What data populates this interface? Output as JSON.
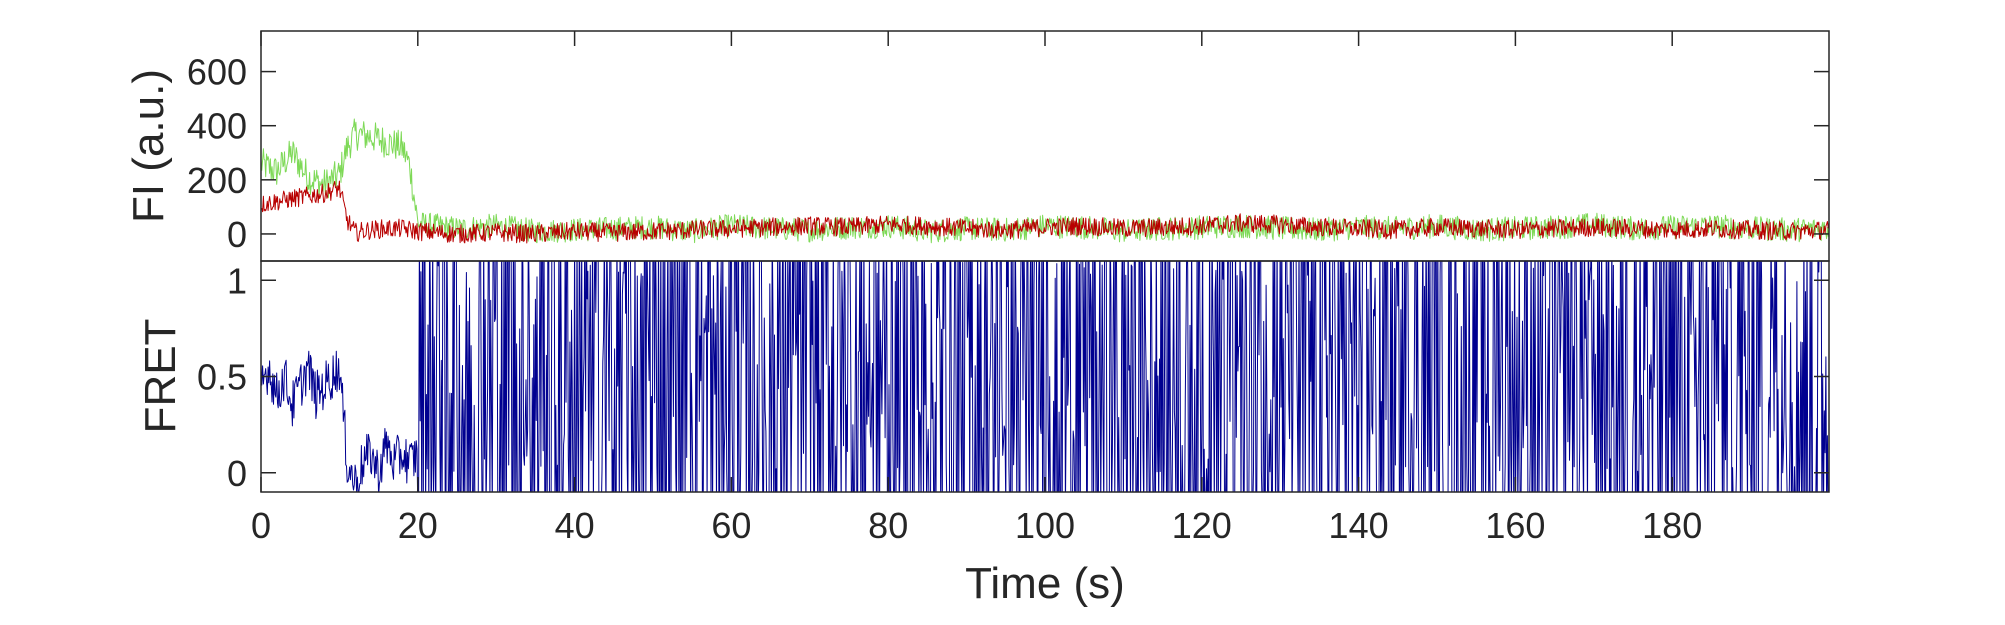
{
  "chart_data": [
    {
      "type": "line",
      "ylabel": "FI (a.u.)",
      "xlabel": "",
      "xlim": [
        0,
        200
      ],
      "ylim": [
        -100,
        750
      ],
      "yticks": [
        0,
        200,
        400,
        600
      ],
      "ytick_labels": [
        "0",
        "200",
        "400",
        "600"
      ],
      "grid": false,
      "series": [
        {
          "color": "#7ed957",
          "x": [
            0,
            2,
            4,
            6,
            8,
            10,
            11,
            12,
            14,
            16,
            18,
            19,
            20,
            25,
            30,
            35,
            40,
            45,
            50,
            55,
            60,
            65,
            70,
            75,
            80,
            85,
            90,
            95,
            100,
            105,
            110,
            115,
            120,
            125,
            130,
            135,
            140,
            145,
            150,
            155,
            160,
            165,
            170,
            175,
            180,
            185,
            190,
            195,
            200
          ],
          "values": [
            260,
            230,
            300,
            210,
            180,
            220,
            320,
            370,
            360,
            340,
            320,
            250,
            40,
            20,
            30,
            10,
            15,
            20,
            25,
            10,
            30,
            20,
            15,
            25,
            30,
            10,
            20,
            15,
            30,
            25,
            10,
            20,
            25,
            30,
            20,
            15,
            25,
            20,
            30,
            15,
            20,
            25,
            35,
            20,
            25,
            30,
            20,
            15,
            20
          ]
        },
        {
          "color": "#b80000",
          "x": [
            0,
            2,
            4,
            6,
            8,
            10,
            11,
            12,
            14,
            16,
            18,
            19,
            20,
            25,
            30,
            35,
            40,
            45,
            50,
            55,
            60,
            65,
            70,
            75,
            80,
            85,
            90,
            95,
            100,
            105,
            110,
            115,
            120,
            125,
            130,
            135,
            140,
            145,
            150,
            155,
            160,
            165,
            170,
            175,
            180,
            185,
            190,
            195,
            200
          ],
          "values": [
            110,
            120,
            130,
            140,
            150,
            170,
            50,
            5,
            15,
            20,
            20,
            15,
            10,
            0,
            5,
            0,
            10,
            5,
            10,
            15,
            20,
            25,
            30,
            25,
            35,
            30,
            20,
            15,
            25,
            30,
            20,
            25,
            30,
            40,
            35,
            25,
            20,
            15,
            25,
            20,
            15,
            20,
            25,
            20,
            15,
            20,
            15,
            10,
            15
          ]
        }
      ]
    },
    {
      "type": "line",
      "ylabel": "FRET",
      "xlabel": "Time (s)",
      "xlim": [
        0,
        200
      ],
      "ylim": [
        -0.1,
        1.1
      ],
      "xticks": [
        0,
        20,
        40,
        60,
        80,
        100,
        120,
        140,
        160,
        180
      ],
      "xtick_labels": [
        "0",
        "20",
        "40",
        "60",
        "80",
        "100",
        "120",
        "140",
        "160",
        "180"
      ],
      "yticks": [
        0,
        0.5,
        1
      ],
      "ytick_labels": [
        "0",
        "0.5",
        "1"
      ],
      "grid": false,
      "series": [
        {
          "color": "#000090",
          "x": [
            0,
            1,
            2,
            3,
            4,
            5,
            6,
            7,
            8,
            9,
            10,
            11,
            12,
            13,
            14,
            15,
            16,
            17,
            18,
            19,
            20
          ],
          "values": [
            0.45,
            0.55,
            0.4,
            0.5,
            0.35,
            0.45,
            0.55,
            0.4,
            0.45,
            0.5,
            0.55,
            0.05,
            -0.05,
            0.05,
            0.1,
            0.0,
            0.15,
            0.05,
            0.1,
            0.05,
            0.1
          ]
        }
      ]
    }
  ]
}
